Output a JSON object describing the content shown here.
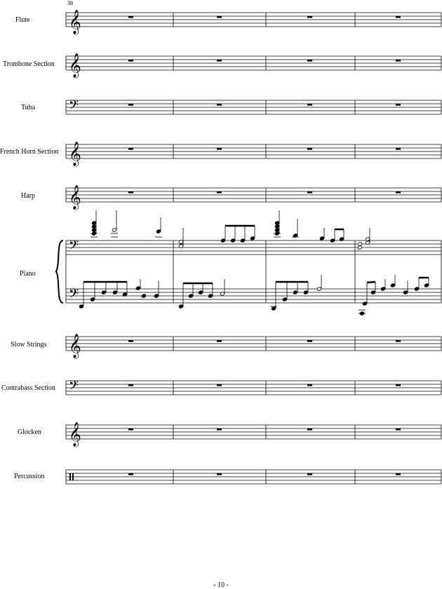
{
  "page": {
    "measure_number": "38",
    "page_number": "- 10 -"
  },
  "instruments": [
    {
      "id": "flute",
      "label": "Flute",
      "clef": "treble"
    },
    {
      "id": "trombone-section",
      "label": "Trombone Section",
      "clef": "treble"
    },
    {
      "id": "tuba",
      "label": "Tuba",
      "clef": "bass"
    },
    {
      "id": "french-horn-section",
      "label": "French Horn Section",
      "clef": "treble"
    },
    {
      "id": "harp",
      "label": "Harp",
      "clef": "treble"
    },
    {
      "id": "piano",
      "label": "Piano",
      "clef": "bass",
      "staves": 2
    },
    {
      "id": "slow-strings",
      "label": "Slow Strings",
      "clef": "treble"
    },
    {
      "id": "contrabass-section",
      "label": "Contrabass Section",
      "clef": "bass"
    },
    {
      "id": "glocken",
      "label": "Glocken",
      "clef": "treble"
    },
    {
      "id": "percussion",
      "label": "Percussion",
      "clef": "percussion"
    }
  ],
  "measures_per_system": 4
}
